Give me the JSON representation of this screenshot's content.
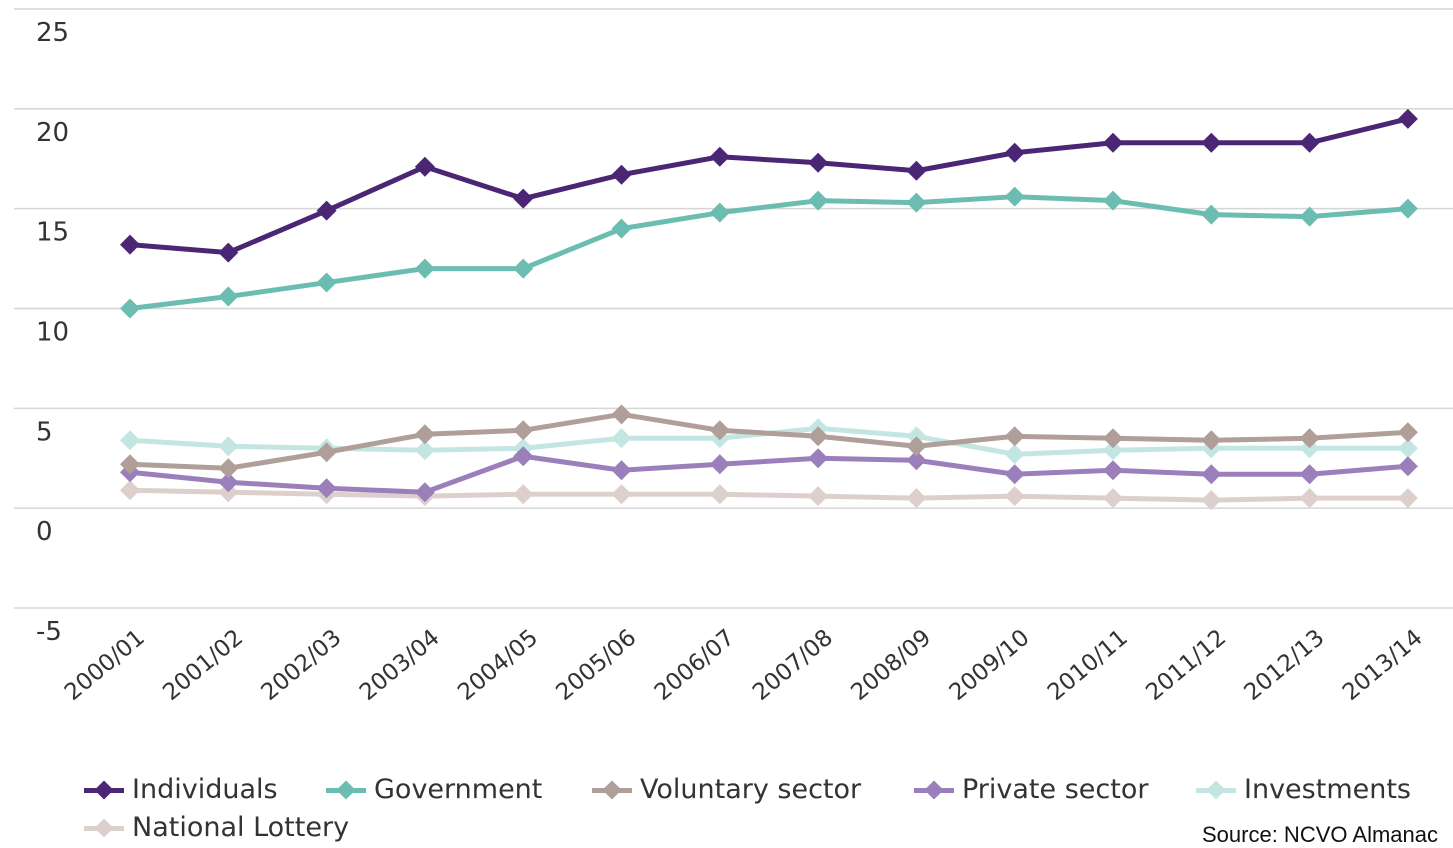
{
  "chart_data": {
    "type": "line",
    "title": "",
    "xlabel": "",
    "ylabel": "",
    "ylim": [
      -5,
      25
    ],
    "yticks": [
      25,
      20,
      15,
      10,
      5,
      0,
      -5
    ],
    "grid": true,
    "legend_position": "bottom",
    "categories": [
      "2000/01",
      "2001/02",
      "2002/03",
      "2003/04",
      "2004/05",
      "2005/06",
      "2006/07",
      "2007/08",
      "2008/09",
      "2009/10",
      "2010/11",
      "2011/12",
      "2012/13",
      "2013/14"
    ],
    "series": [
      {
        "name": "Individuals",
        "color": "#4a2674",
        "values": [
          13.2,
          12.8,
          14.9,
          17.1,
          15.5,
          16.7,
          17.6,
          17.3,
          16.9,
          17.8,
          18.3,
          18.3,
          18.3,
          19.5
        ]
      },
      {
        "name": "Government",
        "color": "#6bbdb2",
        "values": [
          10.0,
          10.6,
          11.3,
          12.0,
          12.0,
          14.0,
          14.8,
          15.4,
          15.3,
          15.6,
          15.4,
          14.7,
          14.6,
          15.0
        ]
      },
      {
        "name": "Voluntary sector",
        "color": "#b09e99",
        "values": [
          2.2,
          2.0,
          2.8,
          3.7,
          3.9,
          4.7,
          3.9,
          3.6,
          3.1,
          3.6,
          3.5,
          3.4,
          3.5,
          3.8
        ]
      },
      {
        "name": "Private sector",
        "color": "#9b7fbb",
        "values": [
          1.8,
          1.3,
          1.0,
          0.8,
          2.6,
          1.9,
          2.2,
          2.5,
          2.4,
          1.7,
          1.9,
          1.7,
          1.7,
          2.1
        ]
      },
      {
        "name": "Investments",
        "color": "#c4e6e2",
        "values": [
          3.4,
          3.1,
          3.0,
          2.9,
          3.0,
          3.5,
          3.5,
          4.0,
          3.6,
          2.7,
          2.9,
          3.0,
          3.0,
          3.0
        ]
      },
      {
        "name": "National Lottery",
        "color": "#ddd0cc",
        "values": [
          0.9,
          0.8,
          0.7,
          0.6,
          0.7,
          0.7,
          0.7,
          0.6,
          0.5,
          0.6,
          0.5,
          0.4,
          0.5,
          0.5
        ]
      }
    ]
  },
  "source": "Source: NCVO Almanac"
}
